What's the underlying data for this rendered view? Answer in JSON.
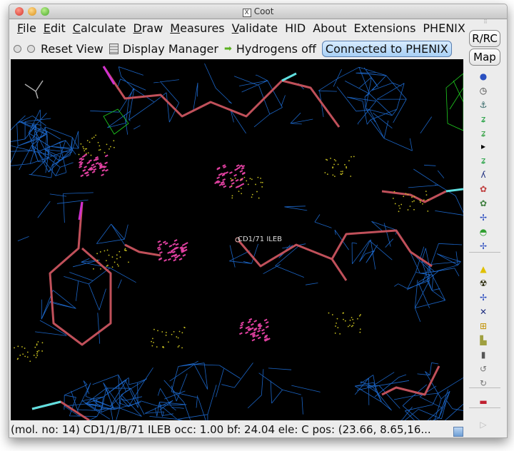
{
  "window": {
    "title": "Coot",
    "title_icon": "X"
  },
  "menu": [
    {
      "u": "F",
      "rest": "ile"
    },
    {
      "u": "E",
      "rest": "dit"
    },
    {
      "u": "C",
      "rest": "alculate"
    },
    {
      "u": "D",
      "rest": "raw"
    },
    {
      "u": "M",
      "rest": "easures"
    },
    {
      "u": "V",
      "rest": "alidate"
    },
    {
      "u": "",
      "rest": "HID"
    },
    {
      "u": "",
      "rest": "About"
    },
    {
      "u": "",
      "rest": "Extensions"
    },
    {
      "u": "",
      "rest": "PHENIX"
    }
  ],
  "toolbar": {
    "reset_view": "Reset View",
    "display_manager": "Display Manager",
    "hydrogens": "Hydrogens off",
    "connected": "Connected to PHENIX"
  },
  "right_toolbar": {
    "rrc": "R/RC",
    "map": "Map",
    "icons": [
      "refine-globe-icon",
      "regularize-icon",
      "rigid-body-icon",
      "rotamer-icon",
      "real-space-refine-icon",
      "expand-arrow-icon",
      "auto-fit-rotamer-icon",
      "flip-peptide-icon",
      "torsion-icon",
      "rotate-translate-icon",
      "side-chain-180-icon",
      "add-water-icon",
      "mutate-icon",
      "delete-icon",
      "delete-radiation-icon",
      "add-atom-icon",
      "add-terminal-residue-icon",
      "add-alt-conf-icon",
      "edit-chi-icon",
      "trash-icon",
      "undo-icon",
      "redo-icon",
      "color-flag-icon"
    ]
  },
  "canvas": {
    "atom_label": "CD1/71 ILEB"
  },
  "status": {
    "text": "(mol. no: 14)  CD1/1/B/71 ILEB occ:  1.00 bf: 24.04 ele:  C pos: (23.66, 8.65,16..."
  },
  "colors": {
    "mesh": "#1e6fd9",
    "bonds": "#c0505a",
    "contacts": "#e040a0",
    "dots": "#c8c020",
    "green_map": "#20d020"
  }
}
